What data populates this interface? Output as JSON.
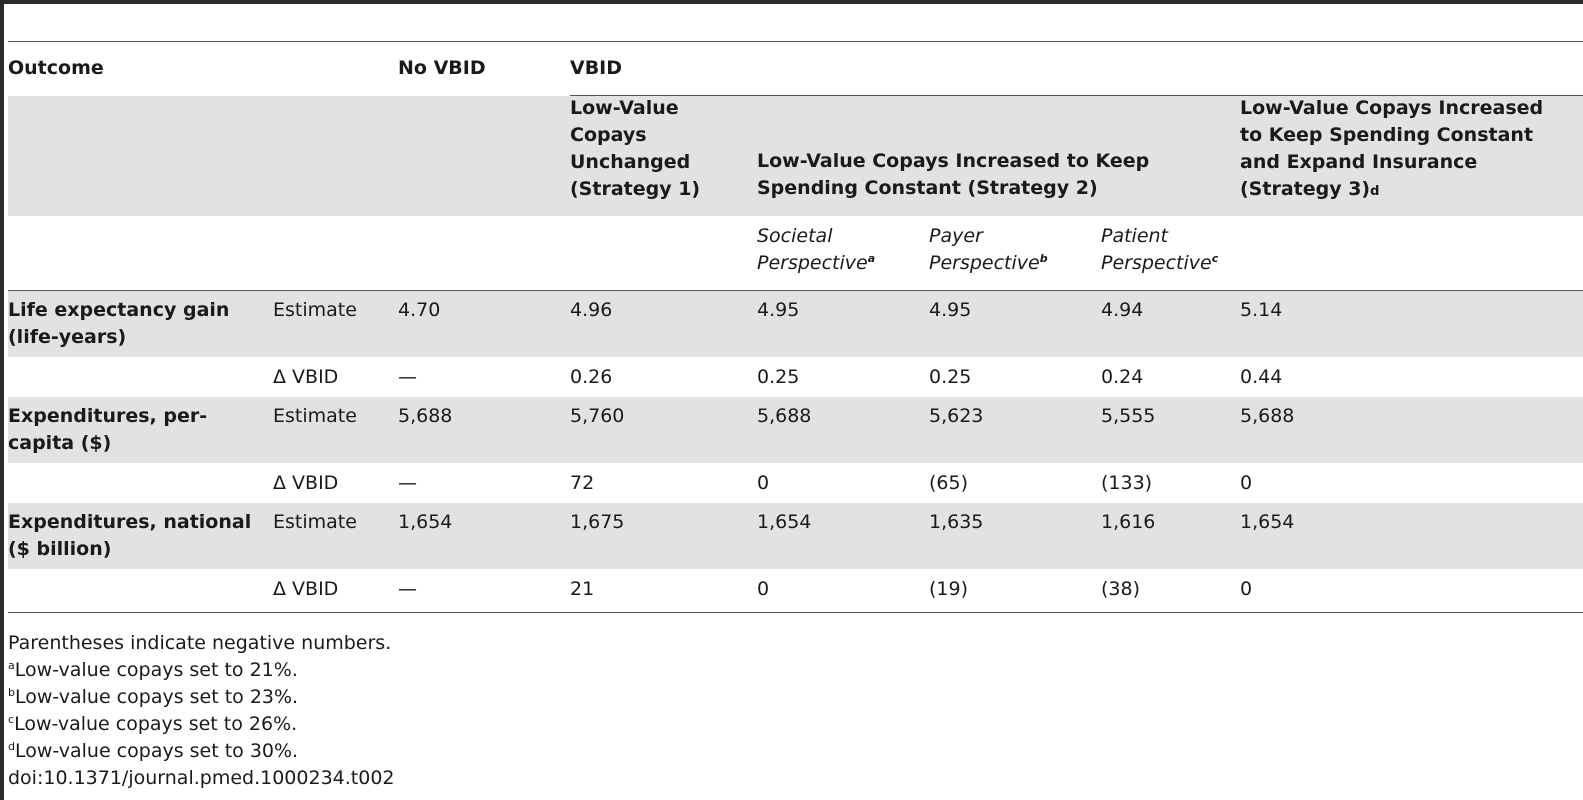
{
  "header": {
    "outcome": "Outcome",
    "no_vbid": "No VBID",
    "vbid": "VBID",
    "strategy1": "Low-Value Copays Unchanged (Strategy 1)",
    "strategy2": "Low-Value Copays Increased to Keep Spending Constant (Strategy 2)",
    "strategy3": "Low-Value Copays Increased to Keep Spending Constant and Expand Insurance (Strategy 3)",
    "strategy3_mark": "d",
    "societal": "Societal Perspective",
    "societal_mark": "a",
    "payer": "Payer Perspective",
    "payer_mark": "b",
    "patient": "Patient Perspective",
    "patient_mark": "c"
  },
  "rows": [
    {
      "outcome": "Life expectancy gain (life-years)",
      "label": "Estimate",
      "values": [
        "4.70",
        "4.96",
        "4.95",
        "4.95",
        "4.94",
        "5.14"
      ]
    },
    {
      "outcome": "",
      "label": "Δ VBID",
      "values": [
        "—",
        "0.26",
        "0.25",
        "0.25",
        "0.24",
        "0.44"
      ]
    },
    {
      "outcome": "Expenditures, per-capita ($)",
      "label": "Estimate",
      "values": [
        "5,688",
        "5,760",
        "5,688",
        "5,623",
        "5,555",
        "5,688"
      ]
    },
    {
      "outcome": "",
      "label": "Δ VBID",
      "values": [
        "—",
        "72",
        "0",
        "(65)",
        "(133)",
        "0"
      ]
    },
    {
      "outcome": "Expenditures, national ($ billion)",
      "label": "Estimate",
      "values": [
        "1,654",
        "1,675",
        "1,654",
        "1,635",
        "1,616",
        "1,654"
      ]
    },
    {
      "outcome": "",
      "label": "Δ VBID",
      "values": [
        "—",
        "21",
        "0",
        "(19)",
        "(38)",
        "0"
      ]
    }
  ],
  "footnotes": {
    "note": "Parentheses indicate negative numbers.",
    "a": {
      "mark": "a",
      "text": "Low-value copays set to 21%."
    },
    "b": {
      "mark": "b",
      "text": "Low-value copays set to 23%."
    },
    "c": {
      "mark": "c",
      "text": "Low-value copays set to 26%."
    },
    "d": {
      "mark": "d",
      "text": "Low-value copays set to 30%."
    },
    "doi": "doi:10.1371/journal.pmed.1000234.t002"
  }
}
